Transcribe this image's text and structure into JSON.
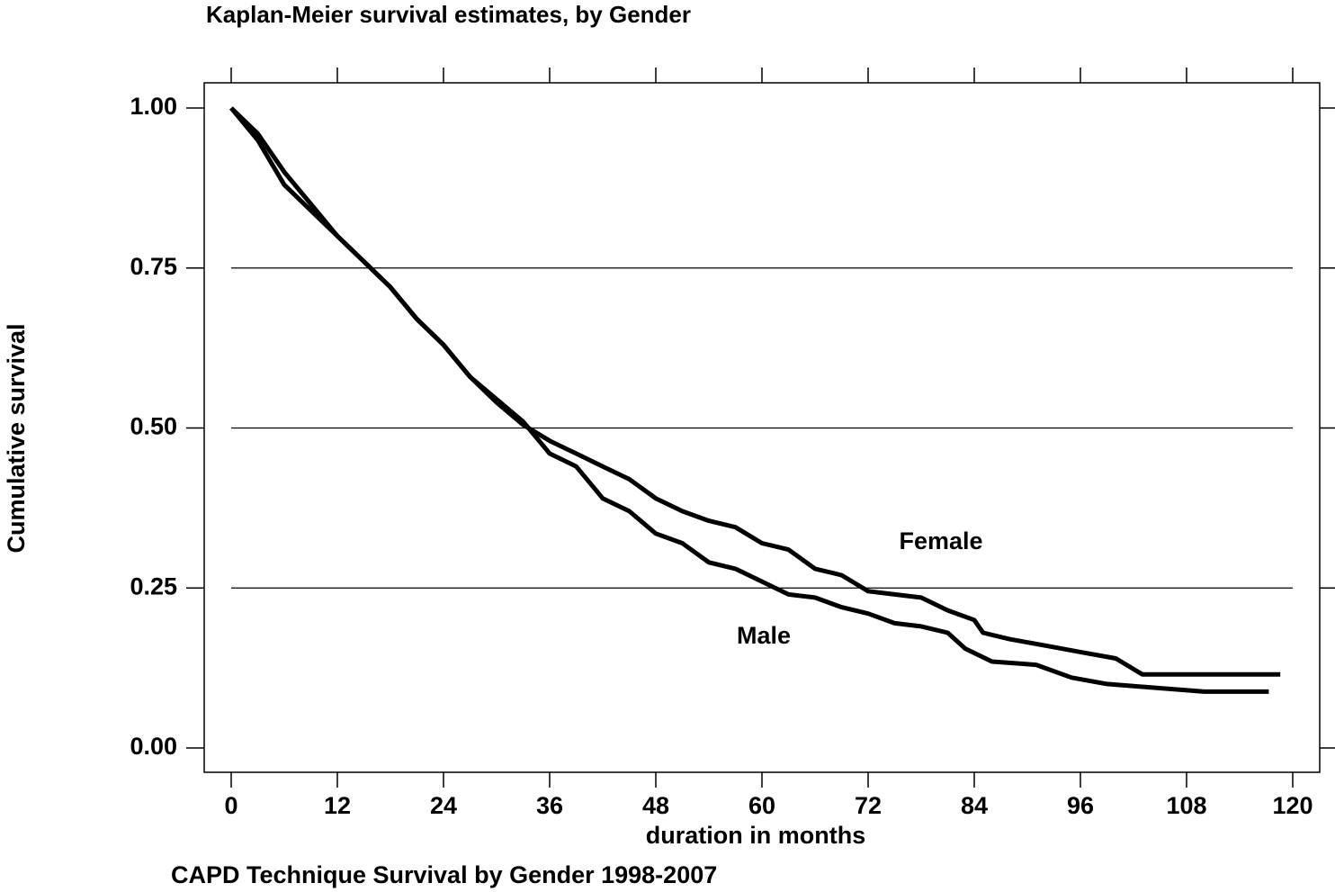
{
  "chart_data": {
    "type": "line",
    "title": "Kaplan-Meier survival estimates, by Gender",
    "caption": "CAPD Technique Survival by Gender 1998-2007",
    "x_label": "duration in months",
    "y_label": "Cumulative survival",
    "xlim": [
      0,
      120
    ],
    "xticks": [
      0,
      12,
      24,
      36,
      48,
      60,
      72,
      84,
      96,
      108,
      120
    ],
    "ylim": [
      0,
      1
    ],
    "yticks": [
      {
        "value": 0,
        "label": "0.00"
      },
      {
        "value": 0.25,
        "label": "0.25"
      },
      {
        "value": 0.5,
        "label": "0.50"
      },
      {
        "value": 0.75,
        "label": "0.75"
      },
      {
        "value": 1,
        "label": "1.00"
      }
    ],
    "grid": true,
    "series": [
      {
        "name": "Female",
        "color": "#000000",
        "x": [
          0,
          3,
          6,
          9,
          12,
          15,
          18,
          21,
          24,
          27,
          30,
          33,
          36,
          39,
          42,
          45,
          48,
          51,
          54,
          57,
          60,
          63,
          66,
          69,
          72,
          75,
          78,
          81,
          84,
          85,
          88,
          92,
          96,
          100,
          103,
          118.6
        ],
        "values": [
          1.0,
          0.96,
          0.9,
          0.85,
          0.8,
          0.76,
          0.72,
          0.67,
          0.63,
          0.58,
          0.54,
          0.505,
          0.48,
          0.46,
          0.44,
          0.42,
          0.39,
          0.37,
          0.355,
          0.345,
          0.32,
          0.31,
          0.28,
          0.27,
          0.245,
          0.24,
          0.235,
          0.215,
          0.2,
          0.18,
          0.17,
          0.16,
          0.15,
          0.14,
          0.115,
          0.115
        ]
      },
      {
        "name": "Male",
        "color": "#000000",
        "x": [
          0,
          3,
          6,
          9,
          12,
          15,
          18,
          21,
          24,
          27,
          30,
          33,
          36,
          39,
          42,
          45,
          48,
          51,
          54,
          57,
          60,
          63,
          66,
          69,
          72,
          75,
          78,
          81,
          83,
          86,
          91,
          95,
          99,
          110,
          117.3
        ],
        "values": [
          1.0,
          0.95,
          0.88,
          0.84,
          0.8,
          0.76,
          0.72,
          0.67,
          0.63,
          0.58,
          0.545,
          0.51,
          0.46,
          0.44,
          0.39,
          0.37,
          0.335,
          0.32,
          0.29,
          0.28,
          0.26,
          0.24,
          0.235,
          0.22,
          0.21,
          0.195,
          0.19,
          0.18,
          0.155,
          0.135,
          0.13,
          0.11,
          0.1,
          0.088,
          0.088
        ]
      }
    ]
  }
}
